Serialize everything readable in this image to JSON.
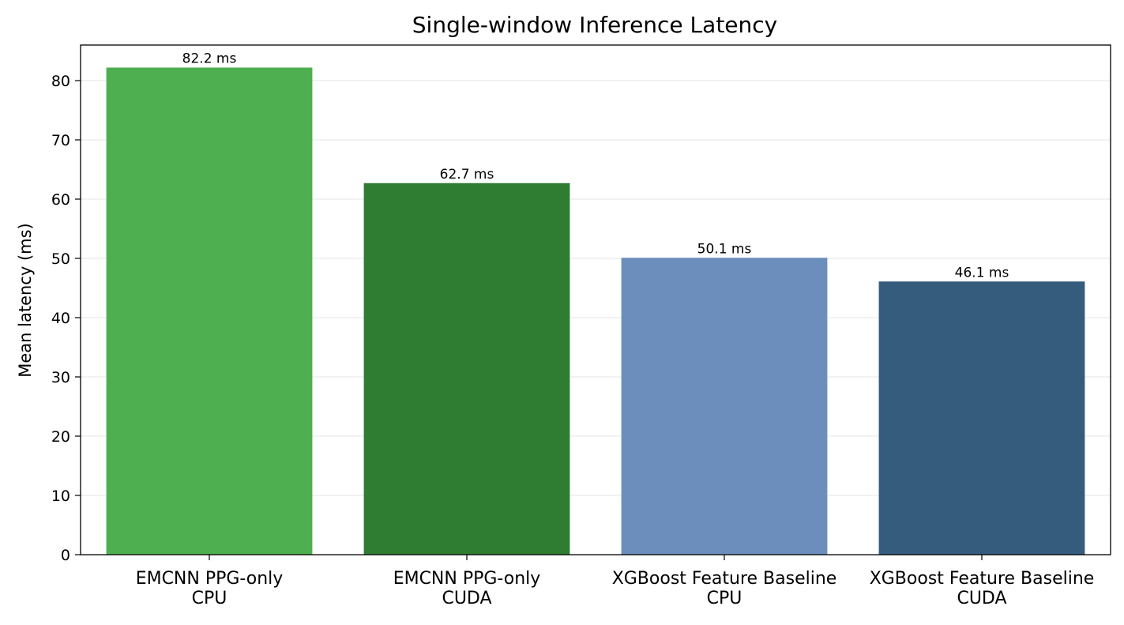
{
  "chart_data": {
    "type": "bar",
    "title": "Single-window Inference Latency",
    "xlabel": "",
    "ylabel": "Mean latency (ms)",
    "ylim": [
      0,
      86
    ],
    "yticks": [
      0,
      10,
      20,
      30,
      40,
      50,
      60,
      70,
      80
    ],
    "grid": "y",
    "categories": [
      [
        "EMCNN PPG-only",
        "CPU"
      ],
      [
        "EMCNN PPG-only",
        "CUDA"
      ],
      [
        "XGBoost Feature Baseline",
        "CPU"
      ],
      [
        "XGBoost Feature Baseline",
        "CUDA"
      ]
    ],
    "values": [
      82.2,
      62.7,
      50.1,
      46.1
    ],
    "data_labels": [
      "82.2 ms",
      "62.7 ms",
      "50.1 ms",
      "46.1 ms"
    ],
    "colors": [
      "#4daf4f",
      "#2f7d32",
      "#6b8ebd",
      "#355c7d"
    ]
  }
}
